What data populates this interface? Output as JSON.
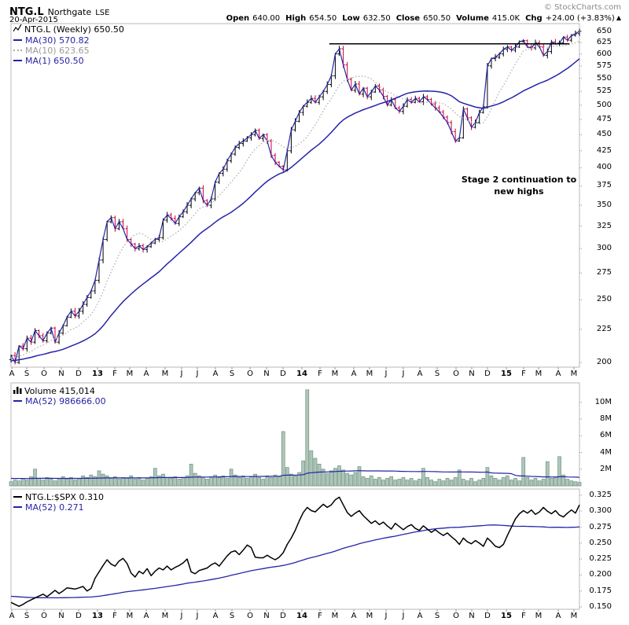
{
  "header": {
    "symbol": "NTG.L",
    "name": "Northgate",
    "exchange": "LSE",
    "date": "20-Apr-2015",
    "credit": "© StockCharts.com",
    "arrow": "▲",
    "quote": {
      "open": {
        "label": "Open",
        "value": "640.00"
      },
      "high": {
        "label": "High",
        "value": "654.50"
      },
      "low": {
        "label": "Low",
        "value": "632.50"
      },
      "close": {
        "label": "Close",
        "value": "650.50"
      },
      "volume": {
        "label": "Volume",
        "value": "415.0K"
      },
      "chg": {
        "label": "Chg",
        "value": "+24.00 (+3.83%)"
      }
    }
  },
  "price_panel": {
    "legend": {
      "title": "NTG.L (Weekly) 650.50",
      "ma30": "MA(30) 570.82",
      "ma10": "MA(10) 623.65",
      "ma1": "MA(1) 650.50"
    },
    "annotation": {
      "line1": "Stage 2 continuation to",
      "line2": "new highs"
    }
  },
  "volume_panel": {
    "legend": {
      "title": "Volume 415,014",
      "ma": "MA(52) 986666.00"
    }
  },
  "ratio_panel": {
    "legend": {
      "title": "NTG.L:$SPX 0.310",
      "ma": "MA(52) 0.271"
    }
  },
  "colors": {
    "navy": "#2424a8",
    "down_red": "#cc0033",
    "bar_black": "#000000",
    "ma10_gray": "#b4b4b4",
    "vol_fill": "#aec6b9",
    "vol_stroke": "#70937f",
    "border_gray": "#b9b9b9",
    "tick_gray": "#999999",
    "ratio_black": "#000000"
  },
  "x_axis": {
    "labels": [
      [
        "A",
        15
      ],
      [
        "S",
        34
      ],
      [
        "O",
        56
      ],
      [
        "N",
        78
      ],
      [
        "D",
        100
      ],
      [
        "13",
        124
      ],
      [
        "F",
        146
      ],
      [
        "M",
        165
      ],
      [
        "A",
        186
      ],
      [
        "M",
        210
      ],
      [
        "J",
        231
      ],
      [
        "J",
        251
      ],
      [
        "A",
        274
      ],
      [
        "S",
        295
      ],
      [
        "O",
        318
      ],
      [
        "N",
        339
      ],
      [
        "D",
        360
      ],
      [
        "14",
        384
      ],
      [
        "F",
        407
      ],
      [
        "M",
        426
      ],
      [
        "A",
        450
      ],
      [
        "M",
        470
      ],
      [
        "J",
        491
      ],
      [
        "J",
        513
      ],
      [
        "A",
        534
      ],
      [
        "S",
        556
      ],
      [
        "O",
        580
      ],
      [
        "N",
        600
      ],
      [
        "D",
        620
      ],
      [
        "15",
        644
      ],
      [
        "F",
        666
      ],
      [
        "M",
        685
      ],
      [
        "A",
        710
      ],
      [
        "M",
        730
      ]
    ]
  },
  "chart_data": [
    {
      "type": "ohlc",
      "name": "price",
      "title": "NTG.L (Weekly)",
      "last_close": 650.5,
      "y_scale": "log",
      "y_ticks": [
        650,
        625,
        600,
        575,
        550,
        525,
        500,
        475,
        450,
        425,
        400,
        375,
        350,
        325,
        300,
        275,
        250,
        225,
        200
      ],
      "ylim": [
        196.5,
        668
      ],
      "weeks": 143,
      "date_range": "Aug-2012 to May-2015",
      "closes": [
        205,
        200,
        212,
        210,
        218,
        215,
        224,
        220,
        216,
        222,
        226,
        215,
        222,
        228,
        235,
        240,
        236,
        240,
        246,
        252,
        258,
        268,
        288,
        310,
        330,
        335,
        322,
        330,
        322,
        310,
        305,
        300,
        303,
        299,
        302,
        306,
        310,
        312,
        332,
        338,
        334,
        328,
        336,
        342,
        350,
        358,
        366,
        372,
        356,
        350,
        358,
        380,
        392,
        398,
        410,
        420,
        430,
        436,
        440,
        445,
        450,
        457,
        444,
        450,
        440,
        418,
        408,
        402,
        397,
        425,
        458,
        472,
        487,
        498,
        505,
        512,
        505,
        515,
        525,
        538,
        555,
        600,
        611,
        577,
        548,
        527,
        539,
        520,
        531,
        515,
        524,
        535,
        528,
        516,
        500,
        510,
        495,
        489,
        498,
        510,
        505,
        512,
        506,
        515,
        510,
        502,
        495,
        488,
        479,
        470,
        455,
        440,
        445,
        493,
        478,
        462,
        470,
        487,
        497,
        575,
        590,
        593,
        600,
        610,
        615,
        608,
        615,
        627,
        629,
        615,
        613,
        624,
        615,
        597,
        605,
        626,
        622,
        624,
        637,
        630,
        641,
        645,
        650.5
      ],
      "ma_lines": [
        {
          "period": 30,
          "last": 570.82
        },
        {
          "period": 10,
          "last": 623.65
        },
        {
          "period": 1,
          "last": 650.5
        }
      ],
      "trendline": {
        "price": 622,
        "week_start": 79.5,
        "week_end": 139.5
      }
    },
    {
      "type": "bar",
      "name": "volume",
      "title": "Volume",
      "last_value": 415014,
      "y_ticks": [
        {
          "label": "10M",
          "value": 10
        },
        {
          "label": "8M",
          "value": 8
        },
        {
          "label": "6M",
          "value": 6
        },
        {
          "label": "4M",
          "value": 4
        },
        {
          "label": "2M",
          "value": 2
        }
      ],
      "ylim_millions": [
        0,
        12.3
      ],
      "values_millions": [
        0.5,
        0.7,
        0.6,
        0.9,
        0.7,
        1.1,
        2.0,
        0.9,
        0.7,
        1.0,
        0.8,
        0.6,
        0.9,
        1.1,
        0.8,
        1.0,
        0.7,
        0.9,
        1.2,
        1.0,
        1.3,
        1.1,
        1.8,
        1.4,
        1.2,
        0.9,
        1.1,
        0.8,
        1.0,
        0.9,
        1.2,
        0.8,
        1.0,
        0.7,
        0.9,
        1.1,
        2.1,
        1.2,
        1.4,
        1.0,
        0.9,
        1.1,
        0.8,
        1.0,
        1.2,
        2.6,
        1.5,
        1.2,
        1.0,
        0.8,
        1.1,
        1.3,
        1.0,
        1.2,
        0.9,
        2.0,
        1.3,
        1.0,
        1.2,
        0.9,
        1.1,
        1.4,
        1.0,
        0.8,
        1.2,
        1.0,
        1.3,
        1.1,
        6.5,
        2.2,
        1.4,
        1.2,
        1.6,
        3.0,
        11.5,
        4.2,
        3.3,
        2.6,
        2.0,
        1.5,
        1.8,
        2.1,
        2.4,
        1.9,
        1.5,
        1.3,
        1.6,
        2.3,
        1.1,
        0.9,
        1.2,
        0.8,
        1.0,
        0.7,
        0.9,
        1.1,
        0.7,
        0.8,
        1.0,
        0.7,
        0.9,
        0.6,
        0.8,
        2.1,
        1.0,
        0.7,
        0.5,
        0.8,
        0.6,
        0.9,
        0.7,
        1.0,
        1.9,
        0.8,
        0.6,
        0.9,
        0.5,
        0.7,
        0.9,
        2.2,
        1.2,
        0.9,
        0.7,
        1.0,
        1.2,
        0.7,
        0.9,
        0.6,
        3.4,
        1.0,
        0.7,
        0.9,
        0.6,
        0.8,
        2.9,
        0.9,
        1.1,
        3.5,
        1.3,
        0.8,
        0.6,
        0.5,
        0.415
      ],
      "ma_line": {
        "period": 52,
        "last": 986666.0
      }
    },
    {
      "type": "line",
      "name": "relative-strength",
      "title": "NTG.L:$SPX",
      "last_value": 0.31,
      "y_ticks": [
        0.325,
        0.3,
        0.275,
        0.25,
        0.225,
        0.2,
        0.175,
        0.15
      ],
      "ylim": [
        0.1463,
        0.335
      ],
      "values": [
        0.157,
        0.154,
        0.151,
        0.154,
        0.158,
        0.161,
        0.164,
        0.167,
        0.17,
        0.166,
        0.171,
        0.176,
        0.171,
        0.175,
        0.18,
        0.179,
        0.178,
        0.18,
        0.182,
        0.175,
        0.179,
        0.195,
        0.205,
        0.215,
        0.224,
        0.217,
        0.214,
        0.222,
        0.226,
        0.218,
        0.203,
        0.197,
        0.206,
        0.202,
        0.21,
        0.199,
        0.206,
        0.211,
        0.208,
        0.214,
        0.208,
        0.212,
        0.215,
        0.219,
        0.225,
        0.205,
        0.202,
        0.207,
        0.209,
        0.211,
        0.216,
        0.219,
        0.214,
        0.222,
        0.23,
        0.236,
        0.238,
        0.232,
        0.239,
        0.247,
        0.243,
        0.228,
        0.227,
        0.227,
        0.231,
        0.227,
        0.224,
        0.228,
        0.235,
        0.248,
        0.258,
        0.27,
        0.285,
        0.298,
        0.306,
        0.301,
        0.299,
        0.305,
        0.311,
        0.306,
        0.31,
        0.318,
        0.322,
        0.31,
        0.298,
        0.292,
        0.297,
        0.301,
        0.293,
        0.287,
        0.281,
        0.285,
        0.279,
        0.283,
        0.277,
        0.272,
        0.281,
        0.276,
        0.271,
        0.276,
        0.279,
        0.273,
        0.27,
        0.277,
        0.272,
        0.267,
        0.271,
        0.266,
        0.262,
        0.266,
        0.26,
        0.255,
        0.248,
        0.258,
        0.252,
        0.249,
        0.254,
        0.25,
        0.245,
        0.258,
        0.252,
        0.245,
        0.243,
        0.248,
        0.262,
        0.275,
        0.288,
        0.296,
        0.301,
        0.297,
        0.302,
        0.295,
        0.299,
        0.306,
        0.3,
        0.296,
        0.301,
        0.294,
        0.291,
        0.297,
        0.302,
        0.297,
        0.31
      ],
      "ma_line": {
        "period": 52,
        "last": 0.271
      }
    }
  ]
}
